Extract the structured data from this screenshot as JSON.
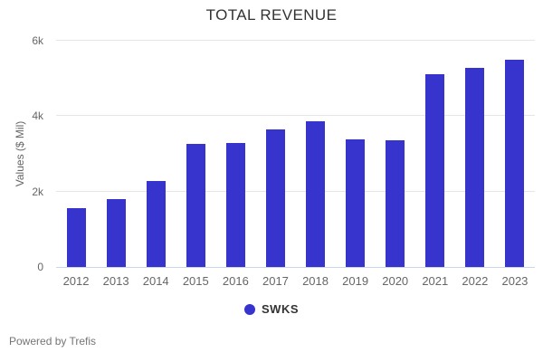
{
  "chart_data": {
    "type": "bar",
    "title": "TOTAL REVENUE",
    "xlabel": "",
    "ylabel": "Values ($ Mil)",
    "categories": [
      "2012",
      "2013",
      "2014",
      "2015",
      "2016",
      "2017",
      "2018",
      "2019",
      "2020",
      "2021",
      "2022",
      "2023"
    ],
    "series": [
      {
        "name": "SWKS",
        "values": [
          1569,
          1792,
          2292,
          3258,
          3289,
          3651,
          3868,
          3377,
          3356,
          5109,
          5290,
          5500
        ]
      }
    ],
    "ylim": [
      0,
      6000
    ],
    "yticks": [
      0,
      2000,
      4000,
      6000
    ],
    "ytick_labels": [
      "0",
      "2k",
      "4k",
      "6k"
    ],
    "grid": true,
    "legend_position": "bottom"
  },
  "legend": {
    "label": "SWKS",
    "marker_color": "#3733cd"
  },
  "footer": {
    "text": "Powered by Trefis"
  },
  "colors": {
    "bar": "#3733cd",
    "title_text": "#333333",
    "axis_text": "#666666",
    "gridline": "#e6e6e6",
    "axis_line": "#ccd6eb",
    "footer_text": "#757575",
    "background": "#ffffff"
  }
}
